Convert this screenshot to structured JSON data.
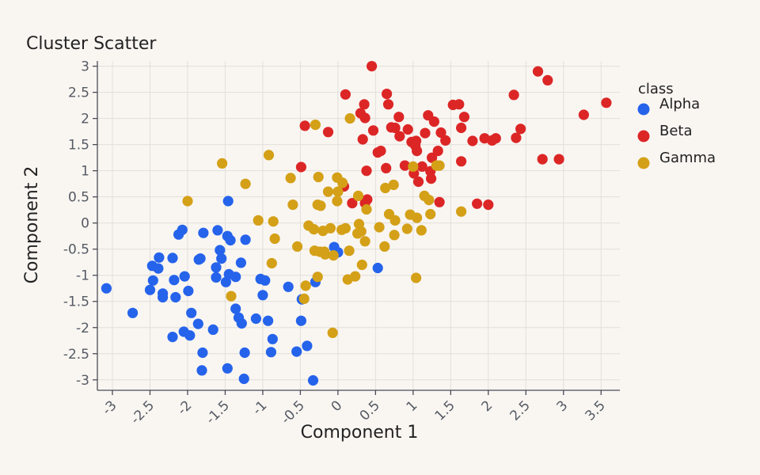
{
  "chart_data": {
    "type": "scatter",
    "title": "Cluster Scatter",
    "xlabel": "Component 1",
    "ylabel": "Component 2",
    "xlim": [
      -3.2,
      3.75
    ],
    "ylim": [
      -3.2,
      3.1
    ],
    "xticks": [
      -3,
      -2.5,
      -2,
      -1.5,
      -1,
      -0.5,
      0,
      0.5,
      1,
      1.5,
      2,
      2.5,
      3,
      3.5
    ],
    "yticks": [
      3,
      2.5,
      2,
      1.5,
      1,
      0.5,
      0,
      -0.5,
      -1,
      -1.5,
      -2,
      -2.5,
      -3
    ],
    "xtick_labels": [
      "-3",
      "-2.5",
      "-2",
      "-1.5",
      "-1",
      "-0.5",
      "0",
      "0.5",
      "1",
      "1.5",
      "2",
      "2.5",
      "3",
      "3.5"
    ],
    "ytick_labels": [
      "3",
      "2.5",
      "2",
      "1.5",
      "1",
      "0.5",
      "0",
      "-0.5",
      "-1",
      "-1.5",
      "-2",
      "-2.5",
      "-3"
    ],
    "grid": true,
    "legend": {
      "title": "class",
      "placement": "right"
    },
    "series": [
      {
        "name": "Alpha",
        "color": "#2563eb",
        "points": [
          [
            -3.08,
            -1.25
          ],
          [
            -2.73,
            -1.72
          ],
          [
            -2.5,
            -1.28
          ],
          [
            -2.47,
            -0.82
          ],
          [
            -2.46,
            -1.1
          ],
          [
            -2.39,
            -0.87
          ],
          [
            -2.38,
            -0.66
          ],
          [
            -2.33,
            -1.35
          ],
          [
            -2.33,
            -1.42
          ],
          [
            -2.2,
            -0.67
          ],
          [
            -2.2,
            -2.18
          ],
          [
            -2.18,
            -1.09
          ],
          [
            -2.16,
            -1.42
          ],
          [
            -2.12,
            -0.22
          ],
          [
            -2.07,
            -0.13
          ],
          [
            -2.05,
            -2.08
          ],
          [
            -2.04,
            -1.02
          ],
          [
            -1.99,
            -1.3
          ],
          [
            -1.97,
            -2.15
          ],
          [
            -1.95,
            -1.72
          ],
          [
            -1.86,
            -1.93
          ],
          [
            -1.85,
            -0.7
          ],
          [
            -1.83,
            -0.68
          ],
          [
            -1.81,
            -2.82
          ],
          [
            -1.8,
            -2.48
          ],
          [
            -1.79,
            -0.19
          ],
          [
            -1.66,
            -2.04
          ],
          [
            -1.62,
            -1.04
          ],
          [
            -1.62,
            -0.85
          ],
          [
            -1.6,
            -0.14
          ],
          [
            -1.57,
            -0.52
          ],
          [
            -1.55,
            -0.68
          ],
          [
            -1.49,
            -1.13
          ],
          [
            -1.47,
            -2.78
          ],
          [
            -1.47,
            -0.25
          ],
          [
            -1.46,
            0.42
          ],
          [
            -1.45,
            -0.98
          ],
          [
            -1.43,
            -0.33
          ],
          [
            -1.36,
            -1.03
          ],
          [
            -1.36,
            -1.64
          ],
          [
            -1.32,
            -1.81
          ],
          [
            -1.29,
            -0.76
          ],
          [
            -1.28,
            -1.92
          ],
          [
            -1.25,
            -2.98
          ],
          [
            -1.24,
            -2.48
          ],
          [
            -1.23,
            -0.32
          ],
          [
            -1.09,
            -1.83
          ],
          [
            -1.03,
            -1.07
          ],
          [
            -1.0,
            -1.38
          ],
          [
            -0.97,
            -1.1
          ],
          [
            -0.93,
            -1.87
          ],
          [
            -0.89,
            -2.47
          ],
          [
            -0.87,
            -2.22
          ],
          [
            -0.66,
            -1.22
          ],
          [
            -0.55,
            -2.46
          ],
          [
            -0.49,
            -1.87
          ],
          [
            -0.48,
            -1.46
          ],
          [
            -0.41,
            -2.35
          ],
          [
            -0.33,
            -3.01
          ],
          [
            -0.3,
            -1.13
          ],
          [
            -0.05,
            -0.46
          ],
          [
            0.0,
            -0.56
          ],
          [
            0.53,
            -0.86
          ]
        ]
      },
      {
        "name": "Beta",
        "color": "#dc2626",
        "points": [
          [
            -0.49,
            1.07
          ],
          [
            -0.44,
            1.86
          ],
          [
            -0.13,
            1.74
          ],
          [
            0.08,
            0.7
          ],
          [
            0.1,
            2.46
          ],
          [
            0.19,
            0.38
          ],
          [
            0.3,
            2.1
          ],
          [
            0.33,
            1.6
          ],
          [
            0.35,
            2.27
          ],
          [
            0.36,
            0.38
          ],
          [
            0.36,
            2.01
          ],
          [
            0.38,
            1.0
          ],
          [
            0.39,
            0.45
          ],
          [
            0.45,
            3.0
          ],
          [
            0.47,
            1.77
          ],
          [
            0.53,
            1.35
          ],
          [
            0.57,
            1.38
          ],
          [
            0.64,
            1.05
          ],
          [
            0.65,
            2.47
          ],
          [
            0.67,
            2.27
          ],
          [
            0.71,
            1.83
          ],
          [
            0.76,
            1.82
          ],
          [
            0.81,
            2.03
          ],
          [
            0.82,
            1.66
          ],
          [
            0.89,
            1.1
          ],
          [
            0.93,
            1.79
          ],
          [
            0.98,
            1.55
          ],
          [
            1.01,
            0.95
          ],
          [
            1.03,
            1.48
          ],
          [
            1.04,
            1.57
          ],
          [
            1.05,
            1.38
          ],
          [
            1.07,
            0.79
          ],
          [
            1.12,
            1.08
          ],
          [
            1.16,
            1.72
          ],
          [
            1.2,
            2.06
          ],
          [
            1.23,
            0.99
          ],
          [
            1.24,
            0.85
          ],
          [
            1.25,
            1.25
          ],
          [
            1.28,
            1.94
          ],
          [
            1.33,
            1.38
          ],
          [
            1.35,
            0.4
          ],
          [
            1.37,
            1.73
          ],
          [
            1.43,
            1.58
          ],
          [
            1.53,
            2.26
          ],
          [
            1.61,
            2.27
          ],
          [
            1.64,
            1.82
          ],
          [
            1.64,
            1.18
          ],
          [
            1.68,
            2.03
          ],
          [
            1.79,
            1.57
          ],
          [
            1.85,
            0.37
          ],
          [
            1.95,
            1.62
          ],
          [
            2.0,
            0.35
          ],
          [
            2.05,
            1.58
          ],
          [
            2.1,
            1.62
          ],
          [
            2.34,
            2.45
          ],
          [
            2.37,
            1.63
          ],
          [
            2.43,
            1.8
          ],
          [
            2.66,
            2.9
          ],
          [
            2.72,
            1.22
          ],
          [
            2.79,
            2.73
          ],
          [
            2.94,
            1.22
          ],
          [
            3.27,
            2.07
          ],
          [
            3.57,
            2.3
          ]
        ]
      },
      {
        "name": "Gamma",
        "color": "#d4a017",
        "points": [
          [
            -2.0,
            0.42
          ],
          [
            -1.54,
            1.14
          ],
          [
            -1.42,
            -1.4
          ],
          [
            -1.23,
            0.75
          ],
          [
            -1.06,
            0.05
          ],
          [
            -0.92,
            1.3
          ],
          [
            -0.88,
            -0.77
          ],
          [
            -0.86,
            0.03
          ],
          [
            -0.84,
            -0.3
          ],
          [
            -0.63,
            0.86
          ],
          [
            -0.6,
            0.35
          ],
          [
            -0.54,
            -0.45
          ],
          [
            -0.45,
            -1.45
          ],
          [
            -0.43,
            -1.2
          ],
          [
            -0.39,
            -0.05
          ],
          [
            -0.32,
            -0.12
          ],
          [
            -0.31,
            -0.53
          ],
          [
            -0.3,
            1.88
          ],
          [
            -0.27,
            -1.03
          ],
          [
            -0.27,
            0.35
          ],
          [
            -0.26,
            0.88
          ],
          [
            -0.24,
            -0.55
          ],
          [
            -0.23,
            0.33
          ],
          [
            -0.2,
            -0.15
          ],
          [
            -0.18,
            -0.55
          ],
          [
            -0.17,
            -0.6
          ],
          [
            -0.13,
            0.6
          ],
          [
            -0.1,
            -0.1
          ],
          [
            -0.07,
            -2.1
          ],
          [
            -0.06,
            -0.62
          ],
          [
            -0.01,
            0.42
          ],
          [
            -0.01,
            0.87
          ],
          [
            0.0,
            0.6
          ],
          [
            0.05,
            -0.13
          ],
          [
            0.06,
            0.77
          ],
          [
            0.1,
            -0.1
          ],
          [
            0.13,
            -1.08
          ],
          [
            0.15,
            -0.53
          ],
          [
            0.16,
            2.0
          ],
          [
            0.23,
            -1.02
          ],
          [
            0.26,
            -0.2
          ],
          [
            0.27,
            0.52
          ],
          [
            0.28,
            -0.02
          ],
          [
            0.31,
            -0.16
          ],
          [
            0.32,
            -0.8
          ],
          [
            0.36,
            -0.35
          ],
          [
            0.38,
            0.26
          ],
          [
            0.55,
            -0.08
          ],
          [
            0.62,
            -0.45
          ],
          [
            0.63,
            0.67
          ],
          [
            0.68,
            0.17
          ],
          [
            0.74,
            0.73
          ],
          [
            0.75,
            -0.23
          ],
          [
            0.76,
            0.05
          ],
          [
            0.92,
            -0.11
          ],
          [
            0.96,
            0.16
          ],
          [
            1.0,
            1.08
          ],
          [
            1.04,
            -1.05
          ],
          [
            1.05,
            0.1
          ],
          [
            1.11,
            -0.14
          ],
          [
            1.15,
            0.52
          ],
          [
            1.21,
            0.44
          ],
          [
            1.23,
            0.17
          ],
          [
            1.31,
            1.1
          ],
          [
            1.35,
            1.1
          ],
          [
            1.64,
            0.22
          ]
        ]
      }
    ]
  }
}
